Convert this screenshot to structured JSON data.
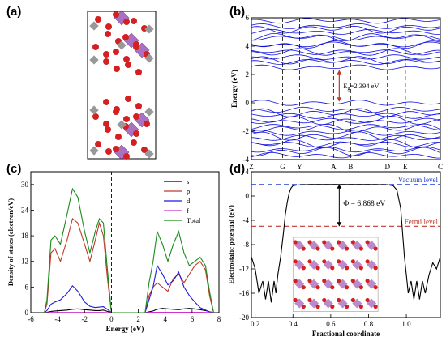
{
  "panels": {
    "a": {
      "label": "(a)"
    },
    "b": {
      "label": "(b)"
    },
    "c": {
      "label": "(c)"
    },
    "d": {
      "label": "(d)"
    }
  },
  "colors": {
    "band": "#1010e0",
    "gap_arrow": "#c0392b",
    "s": "#000000",
    "p": "#c0392b",
    "d": "#1a1adf",
    "f": "#cc33cc",
    "total": "#1a8a1a",
    "vacuum": "#1f3fd0",
    "fermi": "#c0392b",
    "atom_o": "#d42020",
    "atom_metal": "#9b59b6",
    "atom_c": "#999999"
  },
  "chart_data": [
    {
      "panel": "b",
      "type": "line",
      "ylabel": "Energy (eV)",
      "xlabel": "",
      "k_points": [
        "Z",
        "G",
        "Y",
        "A",
        "B",
        "D",
        "E",
        "C"
      ],
      "ylim": [
        -4,
        6
      ],
      "yticks": [
        "-4",
        "-2",
        "0",
        "2",
        "4",
        "6"
      ],
      "annotation": "E_g=2.394 eV",
      "gap_eV": 2.394,
      "conduction_band_levels": [
        2.5,
        2.9,
        3.2,
        3.6,
        4.1,
        4.6,
        5.0,
        5.4,
        5.8
      ],
      "valence_band_levels": [
        0.0,
        -0.5,
        -0.9,
        -1.3,
        -1.7,
        -2.1,
        -2.5,
        -2.9,
        -3.3,
        -3.7
      ]
    },
    {
      "panel": "c",
      "type": "line",
      "xlabel": "Energy (eV)",
      "ylabel": "Density of states (electron/eV)",
      "xlim": [
        -6,
        8
      ],
      "ylim": [
        0,
        33
      ],
      "xticks": [
        "-6",
        "-4",
        "-2",
        "0",
        "2",
        "4",
        "6",
        "8"
      ],
      "yticks": [
        "0",
        "6",
        "12",
        "18",
        "24",
        "30"
      ],
      "legend": [
        "s",
        "p",
        "d",
        "f",
        "Total"
      ],
      "x": [
        -5.0,
        -4.8,
        -4.5,
        -4.2,
        -3.8,
        -3.3,
        -2.9,
        -2.5,
        -2.0,
        -1.6,
        -1.2,
        -0.9,
        -0.6,
        -0.3,
        0.0,
        0.3,
        0.6,
        1.0,
        1.5,
        2.0,
        2.5,
        2.8,
        3.1,
        3.4,
        3.8,
        4.2,
        4.6,
        5.0,
        5.4,
        5.8,
        6.2,
        6.6,
        7.0,
        7.3,
        7.6
      ],
      "series": [
        {
          "name": "s",
          "values": [
            0,
            0.1,
            0.3,
            0.4,
            0.5,
            0.6,
            0.8,
            0.9,
            0.7,
            0.6,
            0.5,
            0.5,
            0.6,
            0.3,
            0,
            0,
            0,
            0,
            0,
            0,
            0,
            0.2,
            0.4,
            0.8,
            1.0,
            0.9,
            0.8,
            0.7,
            0.9,
            1.0,
            0.9,
            0.7,
            0.5,
            0.2,
            0
          ]
        },
        {
          "name": "p",
          "values": [
            0,
            2,
            14,
            15,
            12,
            17,
            22,
            21,
            16,
            12,
            17,
            21,
            18,
            8,
            0,
            0,
            0,
            0,
            0,
            0,
            0,
            4,
            6,
            7,
            6,
            5,
            8,
            9,
            7,
            9,
            11,
            12,
            10,
            4,
            0
          ]
        },
        {
          "name": "d",
          "values": [
            0,
            0.5,
            2,
            2.5,
            3,
            4.5,
            6.3,
            5,
            2.5,
            1.5,
            1.2,
            1.3,
            1.4,
            0.8,
            0,
            0,
            0,
            0,
            0,
            0,
            0,
            3,
            6,
            11,
            9,
            6.5,
            7.5,
            9.5,
            6,
            4,
            2.5,
            1.2,
            0.6,
            0.2,
            0
          ]
        },
        {
          "name": "f",
          "values": [
            0,
            0,
            0.05,
            0.05,
            0.05,
            0.05,
            0.05,
            0.05,
            0.05,
            0.05,
            0.05,
            0.05,
            0.05,
            0.02,
            0,
            0,
            0,
            0,
            0,
            0,
            0,
            0.05,
            0.1,
            0.1,
            0.1,
            0.1,
            0.1,
            0.1,
            0.1,
            0.1,
            0.1,
            0.1,
            0.05,
            0.02,
            0
          ]
        },
        {
          "name": "Total",
          "values": [
            0,
            3,
            17,
            18,
            16,
            23,
            29,
            27,
            19,
            14,
            19,
            22,
            21,
            10,
            0,
            0,
            0,
            0,
            0,
            0,
            0,
            7,
            12,
            19,
            16,
            12,
            16,
            19,
            14,
            11,
            12,
            13,
            11,
            5,
            0
          ]
        }
      ]
    },
    {
      "panel": "d",
      "type": "line",
      "xlabel": "Fractional coordinate",
      "ylabel": "Electrostatic potential (eV)",
      "xlim": [
        0.18,
        1.18
      ],
      "ylim": [
        -20,
        4
      ],
      "xticks": [
        "0.2",
        "0.4",
        "0.6",
        "0.8",
        "1.0"
      ],
      "yticks": [
        "-20",
        "-16",
        "-12",
        "-8",
        "-4",
        "0",
        "4"
      ],
      "vacuum_level": 1.9,
      "fermi_level": -4.97,
      "annotation": "Φ = 6.868 eV",
      "vacuum_label": "Vacuum level",
      "fermi_label": "Fermi level",
      "x": [
        0.18,
        0.2,
        0.22,
        0.24,
        0.255,
        0.27,
        0.285,
        0.3,
        0.31,
        0.32,
        0.335,
        0.35,
        0.36,
        0.37,
        0.38,
        0.39,
        0.4,
        0.42,
        0.45,
        0.5,
        0.6,
        0.7,
        0.8,
        0.9,
        0.93,
        0.95,
        0.97,
        0.98,
        0.99,
        1.0,
        1.01,
        1.025,
        1.04,
        1.055,
        1.07,
        1.085,
        1.1,
        1.12,
        1.14,
        1.16,
        1.18
      ],
      "y": [
        -10,
        -12,
        -16,
        -14,
        -17,
        -14,
        -17.5,
        -14,
        -16,
        -13,
        -10,
        -6,
        -3,
        -1,
        0.5,
        1.3,
        1.7,
        1.8,
        1.85,
        1.9,
        1.9,
        1.9,
        1.9,
        1.85,
        1.7,
        1.0,
        -2,
        -6,
        -10,
        -13,
        -16,
        -14,
        -17,
        -14,
        -17,
        -14,
        -16,
        -13,
        -11,
        -12,
        -10
      ]
    }
  ]
}
